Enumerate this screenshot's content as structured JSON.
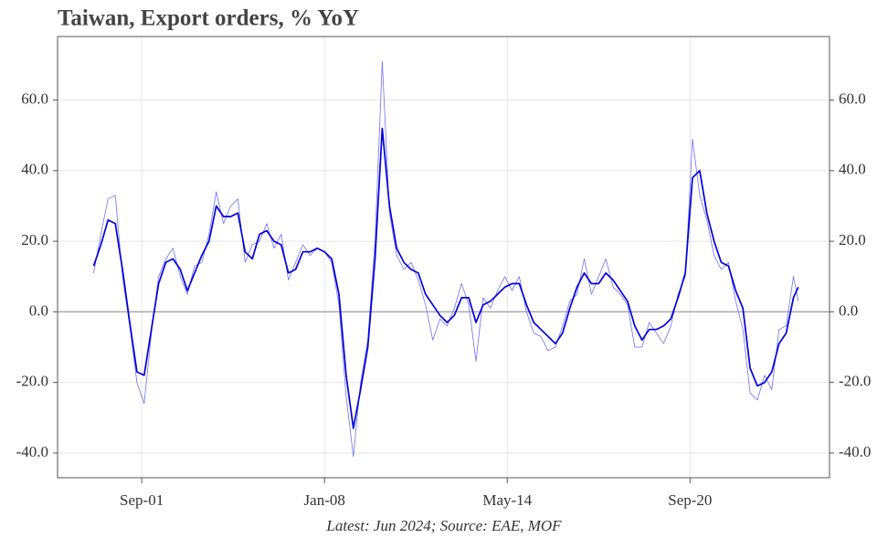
{
  "chart_data": {
    "type": "line",
    "title": "Taiwan, Export orders, % YoY",
    "source": "Latest: Jun 2024; Source: EAE, MOF",
    "x": [
      "Jan-00",
      "Apr-00",
      "Jul-00",
      "Oct-00",
      "Jan-01",
      "Apr-01",
      "Jul-01",
      "Oct-01",
      "Jan-02",
      "Apr-02",
      "Jul-02",
      "Oct-02",
      "Jan-03",
      "Apr-03",
      "Jul-03",
      "Oct-03",
      "Jan-04",
      "Apr-04",
      "Jul-04",
      "Oct-04",
      "Jan-05",
      "Apr-05",
      "Jul-05",
      "Oct-05",
      "Jan-06",
      "Apr-06",
      "Jul-06",
      "Oct-06",
      "Jan-07",
      "Apr-07",
      "Jul-07",
      "Oct-07",
      "Jan-08",
      "Apr-08",
      "Jul-08",
      "Oct-08",
      "Jan-09",
      "Apr-09",
      "Jul-09",
      "Oct-09",
      "Jan-10",
      "Apr-10",
      "Jul-10",
      "Oct-10",
      "Jan-11",
      "Apr-11",
      "Jul-11",
      "Oct-11",
      "Jan-12",
      "Apr-12",
      "Jul-12",
      "Oct-12",
      "Jan-13",
      "Apr-13",
      "Jul-13",
      "Oct-13",
      "Jan-14",
      "Apr-14",
      "Jul-14",
      "Oct-14",
      "Jan-15",
      "Apr-15",
      "Jul-15",
      "Oct-15",
      "Jan-16",
      "Apr-16",
      "Jul-16",
      "Oct-16",
      "Jan-17",
      "Apr-17",
      "Jul-17",
      "Oct-17",
      "Jan-18",
      "Apr-18",
      "Jul-18",
      "Oct-18",
      "Jan-19",
      "Apr-19",
      "Jul-19",
      "Oct-19",
      "Jan-20",
      "Apr-20",
      "Jul-20",
      "Oct-20",
      "Jan-21",
      "Apr-21",
      "Jul-21",
      "Oct-21",
      "Jan-22",
      "Apr-22",
      "Jul-22",
      "Oct-22",
      "Jan-23",
      "Apr-23",
      "Jul-23",
      "Oct-23",
      "Jan-24",
      "Apr-24",
      "Jun-24"
    ],
    "series": [
      {
        "color": "#7070f0",
        "width": 0.8,
        "values": [
          11,
          22,
          32,
          33,
          10,
          -4,
          -20,
          -26,
          -6,
          10,
          15,
          18,
          10,
          5,
          13,
          14,
          22,
          34,
          25,
          30,
          32,
          14,
          19,
          20,
          25,
          18,
          22,
          9,
          14,
          19,
          16,
          18,
          17,
          14,
          2,
          -24,
          -41,
          -20,
          -8,
          20,
          71,
          28,
          16,
          12,
          14,
          9,
          2,
          -8,
          -2,
          -4,
          1,
          8,
          2,
          -14,
          4,
          1,
          6,
          10,
          6,
          10,
          0,
          -6,
          -7,
          -11,
          -10,
          -4,
          3,
          5,
          15,
          5,
          10,
          15,
          7,
          5,
          2,
          -10,
          -10,
          -3,
          -6,
          -9,
          -4,
          5,
          10,
          49,
          33,
          26,
          16,
          12,
          14,
          3,
          -5,
          -23,
          -25,
          -18,
          -22,
          -5,
          -4,
          10,
          3
        ]
      },
      {
        "color": "#0000dd",
        "width": 1.7,
        "values": [
          13,
          19,
          26,
          25,
          12,
          -3,
          -17,
          -18,
          -5,
          8,
          14,
          15,
          12,
          6,
          11,
          16,
          20,
          30,
          27,
          27,
          28,
          17,
          15,
          22,
          23,
          20,
          19,
          11,
          12,
          17,
          17,
          18,
          17,
          15,
          5,
          -18,
          -33,
          -22,
          -10,
          15,
          52,
          30,
          18,
          14,
          12,
          11,
          5,
          2,
          -1,
          -3,
          -1,
          4,
          4,
          -3,
          2,
          3,
          5,
          7,
          8,
          8,
          2,
          -3,
          -5,
          -7,
          -9,
          -6,
          1,
          7,
          11,
          8,
          8,
          11,
          9,
          6,
          3,
          -4,
          -8,
          -5,
          -5,
          -4,
          -2,
          4,
          11,
          38,
          40,
          28,
          20,
          14,
          13,
          6,
          1,
          -16,
          -21,
          -20,
          -17,
          -9,
          -6,
          4,
          7
        ]
      }
    ],
    "xlim": [
      "Oct-98",
      "Jul-25"
    ],
    "xticks": [
      "Sep-01",
      "Jan-08",
      "May-14",
      "Sep-20"
    ],
    "ylim": [
      -47,
      78
    ],
    "yticks": [
      {
        "value": -40,
        "label": "-40.0"
      },
      {
        "value": -20,
        "label": "-20.0"
      },
      {
        "value": 0,
        "label": "0.0"
      },
      {
        "value": 20,
        "label": "20.0"
      },
      {
        "value": 40,
        "label": "40.0"
      },
      {
        "value": 60,
        "label": "60.0"
      }
    ],
    "grid": true,
    "zero_line_color": "#aaaaaa"
  }
}
